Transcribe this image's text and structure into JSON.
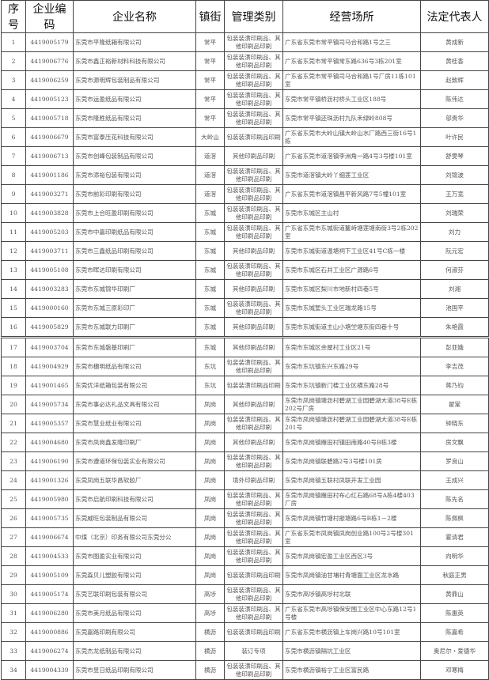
{
  "headers": [
    "序号",
    "企业编码",
    "企业名称",
    "镇街",
    "管理类别",
    "经营场所",
    "法定代表人"
  ],
  "rows": [
    [
      "1",
      "4419005179",
      "东莞市平隆纸箱有限公司",
      "常平",
      "包装装潢印刷品、其他印刷品印刷",
      "广东省东莞市常平镇司马合和路1号之三",
      "黄成新"
    ],
    [
      "2",
      "4419006776",
      "东莞市鑫正裕新材料科技有限公司",
      "常平",
      "包装装潢印刷品、其他印刷品印刷",
      "广东省东莞市常平镇常东路636号3栋201室",
      "黄桂香"
    ],
    [
      "3",
      "4419006259",
      "东莞市源明辉包装制品有限公司",
      "常平",
      "包装装潢印刷品、其他印刷品印刷",
      "广东省东莞市常平镇司马合和路1号厂房11栋101室",
      "赵致辉"
    ],
    [
      "4",
      "4419005123",
      "东莞市运盈纸品有限公司",
      "常平",
      "包装装潢印刷品、其他印刷品印刷",
      "东莞市常平镇桥沥村桥头工业区188号",
      "陈伟达"
    ],
    [
      "5",
      "4419005718",
      "东莞市隆胜纸品有限公司",
      "常平",
      "包装装潢印刷品、其他印刷品印刷",
      "东莞市常平镇还珠沥村九队禾绿岭808号",
      "邬贵华"
    ],
    [
      "6",
      "4419006679",
      "东莞市富泰压花科技有限公司",
      "大岭山",
      "包装装潢印刷品印刷",
      "广东省东莞市大岭山镇大岭山水厂路西三街16号1栋",
      "叶许民"
    ],
    [
      "7",
      "4419006713",
      "东莞市创峰包装制品有限公司",
      "道滘",
      "其他印刷品印刷",
      "广东省东莞市道滘镇李洲角一路4号3号楼101室",
      "舒雯琴"
    ],
    [
      "8",
      "4419001186",
      "东莞市添裕包装有限公司",
      "道滘",
      "包装装潢印刷品、其他印刷品印刷",
      "东莞市道滘镇大岭丫细莲工业区",
      "刘锦波"
    ],
    [
      "9",
      "4419003271",
      "东莞市前彩印刷有限公司",
      "道滘",
      "包装装潢印刷品、其他印刷品印刷",
      "广东省东莞市道滘镇昌平新风路7号5幢101室",
      "王万宽"
    ],
    [
      "10",
      "4419003828",
      "东莞市上合旺盈印刷有限公司",
      "东城",
      "包装装潢印刷品、其他印刷品印刷",
      "东莞市东城区主山村",
      "刘瑞荣"
    ],
    [
      "11",
      "4419005203",
      "东莞市中嘉印刷纸品有限公司",
      "东城",
      "包装装潢印刷品、其他印刷品印刷",
      "广东省东莞市东城街道鳌峙塘莲塘南街3号2栋202室",
      "刘力"
    ],
    [
      "12",
      "4419003711",
      "东莞市三鑫纸品印刷有限公司",
      "东城",
      "其他印刷品印刷",
      "东莞市东城街道温塘祠下工业区41号C栋一楼",
      "阮元宏"
    ],
    [
      "13",
      "4419005108",
      "东莞市晖达印刷有限公司",
      "东城",
      "包装装潢印刷品、其他印刷品印刷",
      "东莞市东城区石井工业区广源路6号",
      "何淑芬"
    ],
    [
      "14",
      "4419003283",
      "东莞市东城锦华印刷厂",
      "东城",
      "其他印刷品印刷",
      "东莞市东城区梨川市地新村四巷5号",
      "刘湘"
    ],
    [
      "15",
      "4419000160",
      "东莞市东城三原彩印厂",
      "东城",
      "包装装潢印刷品、其他印刷品印刷",
      "东莞市东城堑头工业区瑞龙路15号",
      "池国平"
    ],
    [
      "16",
      "4419005829",
      "东莞市东城联力印刷厂",
      "东城",
      "其他印刷品印刷",
      "东莞市东城街道主山小塘坣塘东街四巷十号",
      "朱艳霞"
    ],
    [
      "17",
      "4419003704",
      "东莞市东城磐基印刷厂",
      "东城",
      "其他印刷品印刷",
      "东莞市东城区余屋村工业区21号",
      "彭亚娥"
    ],
    [
      "18",
      "4419004929",
      "东莞市穗明纸品有限公司",
      "东坑",
      "包装装潢印刷品、其他印刷品印刷",
      "东莞市东坑镇东兴东路29号",
      "李吉茂"
    ],
    [
      "19",
      "4419001465",
      "东莞优洋纸箱包装有限公司",
      "东坑",
      "包装装潢印刷品印刷",
      "东莞市东坑镇新门楼工业区横东路28号",
      "蒋乃钧"
    ],
    [
      "20",
      "4419005734",
      "东莞市事必达礼品文具有限公司",
      "凤岗",
      "其他印刷品印刷",
      "东莞市凤岗镇塘沥村碧湖工业园碧湖大道38号E栋202号厂房",
      "翟棠"
    ],
    [
      "21",
      "4419005357",
      "东莞市慧业纸业有限公司",
      "凤岗",
      "包装装潢印刷品、其他印刷品印刷",
      "东莞市凤岗镇塘沥村碧湖工业园碧湖大道38号E栋201号",
      "钟晓东"
    ],
    [
      "22",
      "4419004680",
      "东莞市凤岗鑫发隆印刷厂",
      "凤岗",
      "其他印刷品印刷",
      "东莞市凤岗镇雁田村镇田南路40号B栋3楼",
      "房文飘"
    ],
    [
      "23",
      "4419006190",
      "东莞市遵道环保包装实业有限公司",
      "凤岗",
      "包装装潢印刷品、其他印刷品印刷",
      "东莞市凤岗镇联碧路2号3号楼101房",
      "罗良山"
    ],
    [
      "24",
      "4419001326",
      "东莞凤岗五联华昌软胶厂",
      "凤岗",
      "境外印刷品印刷",
      "东莞市凤岗镇五联村凤联开发工业园",
      "王成兴"
    ],
    [
      "25",
      "4419005980",
      "东莞市启航印刷科技有限公司",
      "凤岗",
      "包装装潢印刷品、其他印刷品印刷",
      "东莞市凤岗镇雁田村布心红石路68号A栋4楼403厂房",
      "陈先名"
    ],
    [
      "26",
      "4419005735",
      "东莞威旺包装制品有限公司",
      "凤岗",
      "包装装潢印刷品、其他印刷品印刷",
      "东莞市凤岗镇竹塘村振塘路6号B栋1－2楼",
      "陈佩枫"
    ],
    [
      "27",
      "4419006674",
      "中煤（北京）印务有限公司东莞分公",
      "凤岗",
      "包装装潢印刷品、其他印刷品印刷",
      "广东省东莞市凤岗镇凤岗创业路100号2号楼301室",
      "霍清君"
    ],
    [
      "28",
      "4419004533",
      "东莞市图盈实业有限公司",
      "凤岗",
      "包装装潢印刷品、其他印刷品印刷",
      "东莞市凤岗镇宏盈工业区西区3号",
      "向明华"
    ],
    [
      "29",
      "4419005109",
      "东莞森贝儿塑胶有限公司",
      "凤岗",
      "包装装潢印刷品印刷",
      "东莞市凤岗镇油甘埔村青塘面工业区龙水路",
      "秋庭正男"
    ],
    [
      "30",
      "4419005174",
      "东莞艺联印刷包装有限公司",
      "高埗",
      "包装装潢印刷品、其他印刷品印刷",
      "东莞市高埗镇高埗村北联",
      "黄鼎山"
    ],
    [
      "31",
      "4419006280",
      "东莞市美月纸品有限公司",
      "高埗",
      "包装装潢印刷品、其他印刷品印刷",
      "广东省东莞市高埗镇保安围工业区中心东路12号1号楼",
      "陈惠英"
    ],
    [
      "32",
      "4419000886",
      "东莞嘉路印刷有限公司",
      "横沥",
      "包装装潢印刷品印刷",
      "广东省东莞市横沥镇上车岗兴路10号101室",
      "陈嘉希"
    ],
    [
      "33",
      "4419006274",
      "东莞杰龙纸制品有限公司",
      "横沥",
      "装订专项",
      "东莞市横沥镇隔坑工业区",
      "奥尼尔・爱德华"
    ],
    [
      "34",
      "4419004339",
      "东莞市昱日纸品印刷有限公司",
      "横沥",
      "包装装潢印刷品、其他印刷品印刷",
      "东莞市横沥镇裕宁工业区富民路",
      "邓寒梅"
    ]
  ]
}
